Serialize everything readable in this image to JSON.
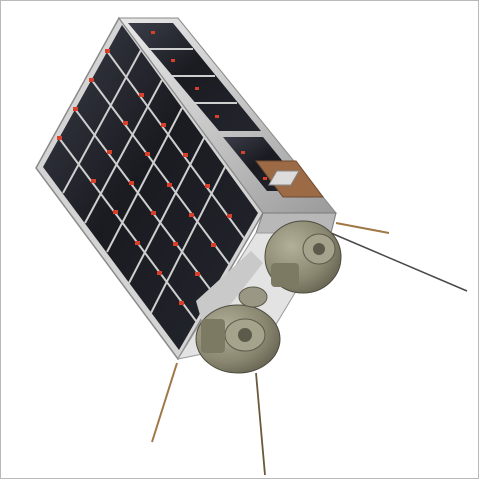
{
  "image": {
    "subject": "cubesat-satellite",
    "background_color": "#ffffff",
    "border_color": "#b9b9b9",
    "colors": {
      "solar_cell": "#1b1c22",
      "solar_cell_glare": "#3a3d48",
      "frame_metal": "#cfcfcf",
      "frame_edge": "#8a8a8a",
      "contact_red": "#d9402c",
      "thruster_body": "#8a8770",
      "thruster_dark": "#5c5a4a",
      "antenna": "#a07848",
      "sensor_copper": "#9c6a45"
    }
  }
}
